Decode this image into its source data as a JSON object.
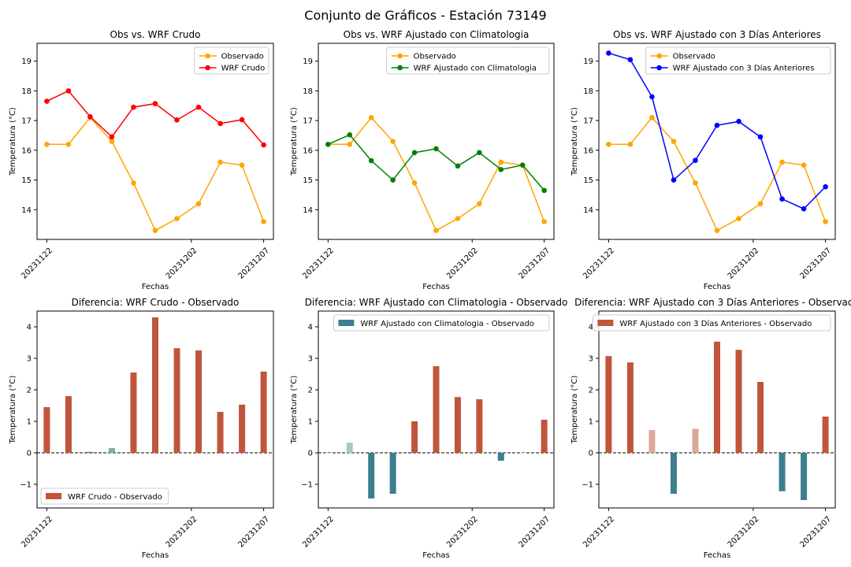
{
  "figure": {
    "title": "Conjunto de Gráficos - Estación 73149"
  },
  "chart_data": [
    {
      "type": "line",
      "title": "Obs vs. WRF Crudo",
      "xlabel": "Fechas",
      "ylabel": "Temperatura (°C)",
      "x": [
        "20231122",
        "20231123",
        "20231124",
        "20231125",
        "20231126",
        "20231127",
        "20231128",
        "20231129",
        "20231130",
        "20231201",
        "20231202"
      ],
      "xticks": [
        "20231122",
        "20231202",
        "20231207"
      ],
      "yticks": [
        14,
        15,
        16,
        17,
        18,
        19
      ],
      "ylim": [
        13.0,
        19.6
      ],
      "legend": "top-right",
      "series": [
        {
          "name": "Observado",
          "color": "#ffa500",
          "values": [
            16.2,
            16.2,
            17.1,
            16.3,
            14.9,
            13.3,
            13.7,
            14.2,
            15.6,
            15.5,
            13.6
          ]
        },
        {
          "name": "WRF Crudo",
          "color": "#ff0000",
          "values": [
            17.65,
            18.0,
            17.13,
            16.45,
            17.45,
            17.57,
            17.02,
            17.45,
            16.9,
            17.03,
            16.18
          ]
        }
      ]
    },
    {
      "type": "line",
      "title": "Obs vs. WRF Ajustado con Climatologia",
      "xlabel": "Fechas",
      "ylabel": "Temperatura (°C)",
      "x": [
        "20231122",
        "20231123",
        "20231124",
        "20231125",
        "20231126",
        "20231127",
        "20231128",
        "20231129",
        "20231130",
        "20231201",
        "20231202"
      ],
      "xticks": [
        "20231122",
        "20231202",
        "20231207"
      ],
      "yticks": [
        14,
        15,
        16,
        17,
        18,
        19
      ],
      "ylim": [
        13.0,
        19.6
      ],
      "legend": "top-right",
      "series": [
        {
          "name": "Observado",
          "color": "#ffa500",
          "values": [
            16.2,
            16.2,
            17.1,
            16.3,
            14.9,
            13.3,
            13.7,
            14.2,
            15.6,
            15.5,
            13.6
          ]
        },
        {
          "name": "WRF Ajustado con Climatologia",
          "color": "#008000",
          "values": [
            16.2,
            16.52,
            15.65,
            15.0,
            15.92,
            16.05,
            15.47,
            15.92,
            15.35,
            15.5,
            14.65
          ]
        }
      ]
    },
    {
      "type": "line",
      "title": "Obs vs. WRF Ajustado con 3 Días Anteriores",
      "xlabel": "Fechas",
      "ylabel": "Temperatura (°C)",
      "x": [
        "20231122",
        "20231123",
        "20231124",
        "20231125",
        "20231126",
        "20231127",
        "20231128",
        "20231129",
        "20231130",
        "20231201",
        "20231202"
      ],
      "xticks": [
        "20231122",
        "20231202",
        "20231207"
      ],
      "yticks": [
        14,
        15,
        16,
        17,
        18,
        19
      ],
      "ylim": [
        13.0,
        19.6
      ],
      "legend": "top-right",
      "series": [
        {
          "name": "Observado",
          "color": "#ffa500",
          "values": [
            16.2,
            16.2,
            17.1,
            16.3,
            14.9,
            13.3,
            13.7,
            14.2,
            15.6,
            15.5,
            13.6
          ]
        },
        {
          "name": "WRF Ajustado con 3 Días Anteriores",
          "color": "#0000ff",
          "values": [
            19.27,
            19.05,
            17.8,
            15.0,
            15.66,
            16.84,
            16.97,
            16.45,
            14.36,
            14.03,
            14.77
          ]
        }
      ]
    },
    {
      "type": "bar",
      "title": "Diferencia: WRF Crudo - Observado",
      "xlabel": "Fechas",
      "ylabel": "Temperatura (°C)",
      "x": [
        "20231122",
        "20231123",
        "20231124",
        "20231125",
        "20231126",
        "20231127",
        "20231128",
        "20231129",
        "20231130",
        "20231201",
        "20231202"
      ],
      "xticks": [
        "20231122",
        "20231202",
        "20231207"
      ],
      "yticks": [
        -1,
        0,
        1,
        2,
        3,
        4
      ],
      "ylim": [
        -1.75,
        4.5
      ],
      "legend": "bottom-left",
      "series_name": "WRF Crudo - Observado",
      "colors": {
        "positive": "#c1553b",
        "negative": "#3d7f8f",
        "positive_light": "#dba89a",
        "negative_light": "#a8c6cd"
      },
      "values": [
        1.45,
        1.8,
        0.03,
        0.15,
        2.55,
        4.3,
        3.32,
        3.25,
        1.3,
        1.53,
        2.58
      ],
      "bar_colors": [
        "#c1553b",
        "#c1553b",
        "#3d7f8f",
        "#7fa9b3",
        "#c1553b",
        "#c1553b",
        "#c1553b",
        "#c1553b",
        "#c1553b",
        "#c1553b",
        "#c1553b"
      ]
    },
    {
      "type": "bar",
      "title": "Diferencia: WRF Ajustado con Climatologia - Observado",
      "xlabel": "Fechas",
      "ylabel": "Temperatura (°C)",
      "x": [
        "20231122",
        "20231123",
        "20231124",
        "20231125",
        "20231126",
        "20231127",
        "20231128",
        "20231129",
        "20231130",
        "20231201",
        "20231202"
      ],
      "xticks": [
        "20231122",
        "20231202",
        "20231207"
      ],
      "yticks": [
        -1,
        0,
        1,
        2,
        3,
        4
      ],
      "ylim": [
        -1.75,
        4.5
      ],
      "legend": "top-right",
      "series_name": "WRF Ajustado con Climatologia - Observado",
      "legend_color": "#3d7f8f",
      "values": [
        0.0,
        0.32,
        -1.45,
        -1.3,
        1.0,
        2.75,
        1.77,
        1.7,
        -0.25,
        0.0,
        1.05
      ],
      "bar_colors": [
        "#a8c6cd",
        "#a8c6cd",
        "#3d7f8f",
        "#3d7f8f",
        "#c1553b",
        "#c1553b",
        "#c1553b",
        "#c1553b",
        "#3d7f8f",
        "#a8c6cd",
        "#c1553b"
      ]
    },
    {
      "type": "bar",
      "title": "Diferencia: WRF Ajustado con 3 Días Anteriores - Observado",
      "xlabel": "Fechas",
      "ylabel": "Temperatura (°C)",
      "x": [
        "20231122",
        "20231123",
        "20231124",
        "20231125",
        "20231126",
        "20231127",
        "20231128",
        "20231129",
        "20231130",
        "20231201",
        "20231202"
      ],
      "xticks": [
        "20231122",
        "20231202",
        "20231207"
      ],
      "yticks": [
        -1,
        0,
        1,
        2,
        3,
        4
      ],
      "ylim": [
        -1.75,
        4.5
      ],
      "legend": "top-right",
      "series_name": "WRF Ajustado con 3 Días Anteriores - Observado",
      "legend_color": "#c1553b",
      "values": [
        3.07,
        2.87,
        0.72,
        -1.3,
        0.76,
        3.53,
        3.27,
        2.25,
        -1.22,
        -1.5,
        1.15
      ],
      "bar_colors": [
        "#c1553b",
        "#c1553b",
        "#dba89a",
        "#3d7f8f",
        "#dba89a",
        "#c1553b",
        "#c1553b",
        "#c1553b",
        "#3d7f8f",
        "#3d7f8f",
        "#c1553b"
      ]
    }
  ]
}
